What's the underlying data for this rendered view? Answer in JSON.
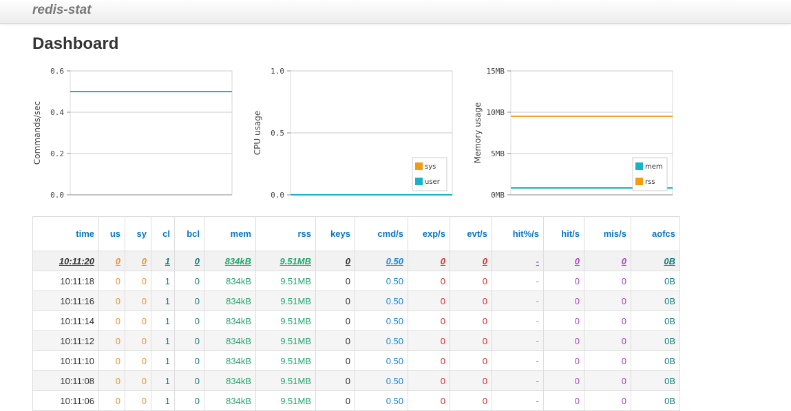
{
  "app": {
    "brand": "redis-stat"
  },
  "page": {
    "title": "Dashboard"
  },
  "colors": {
    "teal": "#17b3c9",
    "orange": "#f39c12",
    "header_blue": "#0a74c4"
  },
  "chart_data": [
    {
      "type": "line",
      "title": "",
      "xlabel": "",
      "ylabel": "Commands/sec",
      "ylim": [
        0,
        0.6
      ],
      "y_ticks": [
        "0.0",
        "0.2",
        "0.4",
        "0.6"
      ],
      "y_tick_values": [
        0,
        0.2,
        0.4,
        0.6
      ],
      "grid": true,
      "legend": "none",
      "series": [
        {
          "color": "#17b3c9",
          "values": [
            0.5,
            0.5
          ]
        }
      ]
    },
    {
      "type": "line",
      "title": "",
      "xlabel": "",
      "ylabel": "CPU usage",
      "ylim": [
        0,
        1.0
      ],
      "y_ticks": [
        "0.0",
        "0.5",
        "1.0"
      ],
      "y_tick_values": [
        0,
        0.5,
        1.0
      ],
      "grid": true,
      "legend": "bottom-right",
      "series": [
        {
          "name": "sys",
          "color": "#f39c12",
          "values": [
            0,
            0
          ]
        },
        {
          "name": "user",
          "color": "#17b3c9",
          "values": [
            0,
            0
          ]
        }
      ]
    },
    {
      "type": "line",
      "title": "",
      "xlabel": "",
      "ylabel": "Memory usage",
      "ylim": [
        0,
        15
      ],
      "y_ticks": [
        "0MB",
        "5MB",
        "10MB",
        "15MB"
      ],
      "y_tick_values": [
        0,
        5,
        10,
        15
      ],
      "grid": true,
      "legend": "bottom-right",
      "series": [
        {
          "name": "mem",
          "color": "#17b3c9",
          "values": [
            0.834,
            0.834
          ]
        },
        {
          "name": "rss",
          "color": "#f39c12",
          "values": [
            9.51,
            9.51
          ]
        }
      ]
    }
  ],
  "table": {
    "columns": [
      {
        "key": "time",
        "label": "time"
      },
      {
        "key": "us",
        "label": "us"
      },
      {
        "key": "sy",
        "label": "sy"
      },
      {
        "key": "cl",
        "label": "cl"
      },
      {
        "key": "bcl",
        "label": "bcl"
      },
      {
        "key": "mem",
        "label": "mem"
      },
      {
        "key": "rss",
        "label": "rss"
      },
      {
        "key": "keys",
        "label": "keys"
      },
      {
        "key": "cmd",
        "label": "cmd/s"
      },
      {
        "key": "exp",
        "label": "exp/s"
      },
      {
        "key": "evt",
        "label": "evt/s"
      },
      {
        "key": "hitpct",
        "label": "hit%/s"
      },
      {
        "key": "hit",
        "label": "hit/s"
      },
      {
        "key": "mis",
        "label": "mis/s"
      },
      {
        "key": "aofcs",
        "label": "aofcs"
      }
    ],
    "rows": [
      [
        "10:11:20",
        "0",
        "0",
        "1",
        "0",
        "834kB",
        "9.51MB",
        "0",
        "0.50",
        "0",
        "0",
        "-",
        "0",
        "0",
        "0B"
      ],
      [
        "10:11:18",
        "0",
        "0",
        "1",
        "0",
        "834kB",
        "9.51MB",
        "0",
        "0.50",
        "0",
        "0",
        "-",
        "0",
        "0",
        "0B"
      ],
      [
        "10:11:16",
        "0",
        "0",
        "1",
        "0",
        "834kB",
        "9.51MB",
        "0",
        "0.50",
        "0",
        "0",
        "-",
        "0",
        "0",
        "0B"
      ],
      [
        "10:11:14",
        "0",
        "0",
        "1",
        "0",
        "834kB",
        "9.51MB",
        "0",
        "0.50",
        "0",
        "0",
        "-",
        "0",
        "0",
        "0B"
      ],
      [
        "10:11:12",
        "0",
        "0",
        "1",
        "0",
        "834kB",
        "9.51MB",
        "0",
        "0.50",
        "0",
        "0",
        "-",
        "0",
        "0",
        "0B"
      ],
      [
        "10:11:10",
        "0",
        "0",
        "1",
        "0",
        "834kB",
        "9.51MB",
        "0",
        "0.50",
        "0",
        "0",
        "-",
        "0",
        "0",
        "0B"
      ],
      [
        "10:11:08",
        "0",
        "0",
        "1",
        "0",
        "834kB",
        "9.51MB",
        "0",
        "0.50",
        "0",
        "0",
        "-",
        "0",
        "0",
        "0B"
      ],
      [
        "10:11:06",
        "0",
        "0",
        "1",
        "0",
        "834kB",
        "9.51MB",
        "0",
        "0.50",
        "0",
        "0",
        "-",
        "0",
        "0",
        "0B"
      ]
    ]
  }
}
